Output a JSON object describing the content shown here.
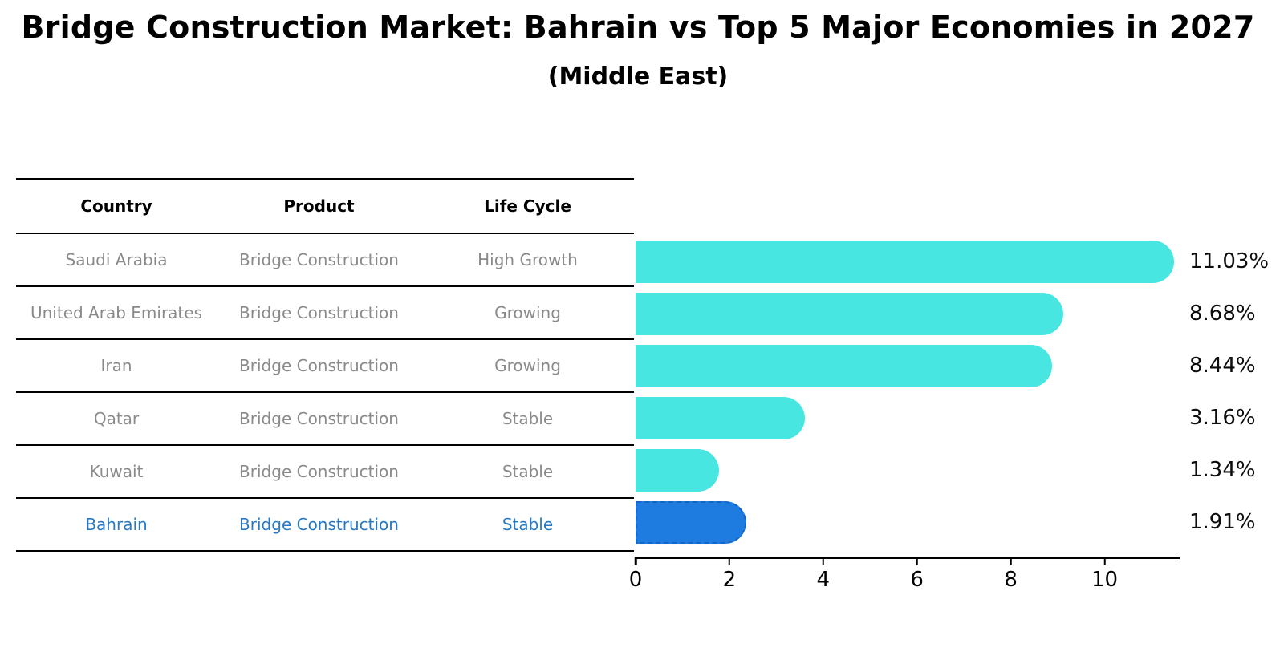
{
  "title": "Bridge Construction Market: Bahrain vs Top 5 Major Economies in 2027",
  "subtitle": "(Middle East)",
  "table": {
    "columns": [
      "Country",
      "Product",
      "Life Cycle"
    ],
    "rows": [
      {
        "country": "Saudi Arabia",
        "product": "Bridge Construction",
        "life_cycle": "High Growth"
      },
      {
        "country": "United Arab Emirates",
        "product": "Bridge Construction",
        "life_cycle": "Growing"
      },
      {
        "country": "Iran",
        "product": "Bridge Construction",
        "life_cycle": "Growing"
      },
      {
        "country": "Qatar",
        "product": "Bridge Construction",
        "life_cycle": "Stable"
      },
      {
        "country": "Kuwait",
        "product": "Bridge Construction",
        "life_cycle": "Stable"
      },
      {
        "country": "Bahrain",
        "product": "Bridge Construction",
        "life_cycle": "Stable"
      }
    ],
    "highlighted_row": "Bahrain"
  },
  "chart_data": {
    "type": "bar",
    "orientation": "horizontal",
    "categories": [
      "Saudi Arabia",
      "United Arab Emirates",
      "Iran",
      "Qatar",
      "Kuwait",
      "Bahrain"
    ],
    "values": [
      11.03,
      8.68,
      8.44,
      3.16,
      1.34,
      1.91
    ],
    "labels": [
      "11.03%",
      "8.68%",
      "8.44%",
      "3.16%",
      "1.34%",
      "1.91%"
    ],
    "xticks": [
      0,
      2,
      4,
      6,
      8,
      10
    ],
    "xlim": [
      0,
      11.6
    ],
    "grid": false,
    "legend": "none",
    "bar_color": "#47E6E1",
    "highlight_color": "#1E7CE0",
    "highlight_border_color": "#1565C8",
    "highlight_index": 5,
    "highlight_text_color": "#2878C4"
  }
}
